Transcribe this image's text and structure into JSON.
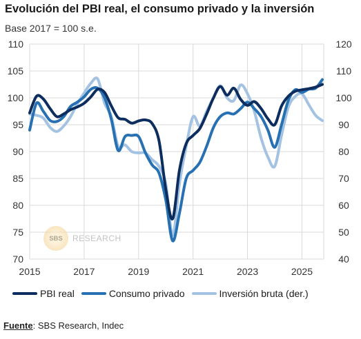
{
  "title": "Evolución del PBI real, el consumo privado y la inversión",
  "subtitle": "Base 2017 = 100 s.e.",
  "source": {
    "label": "Fuente",
    "text": ": SBS Research, Indec"
  },
  "watermark": {
    "circle": "SBS",
    "text": "RESEARCH"
  },
  "colors": {
    "pbi": "#0c2d5e",
    "consumo": "#2771b3",
    "inversion": "#a4c3e2",
    "grid": "#d9d9d9"
  },
  "chart_data": {
    "type": "line",
    "x_ticks": [
      "2015",
      "2017",
      "2019",
      "2021",
      "2023",
      "2025"
    ],
    "xlim": [
      2015,
      2025.8
    ],
    "ylim_left": [
      70,
      110
    ],
    "ylim_right": [
      40,
      120
    ],
    "y_ticks_left": [
      "70",
      "75",
      "80",
      "85",
      "90",
      "95",
      "100",
      "105",
      "110"
    ],
    "y_ticks_right": [
      "40",
      "50",
      "60",
      "70",
      "80",
      "90",
      "100",
      "110",
      "120"
    ],
    "grid": true,
    "legend_position": "bottom",
    "series": [
      {
        "name": "PBI real",
        "axis": "left",
        "color": "#0c2d5e",
        "x": [
          2015.0,
          2015.25,
          2015.5,
          2015.75,
          2016.0,
          2016.25,
          2016.5,
          2016.75,
          2017.0,
          2017.25,
          2017.5,
          2017.75,
          2018.0,
          2018.25,
          2018.5,
          2018.75,
          2019.0,
          2019.25,
          2019.5,
          2019.75,
          2020.0,
          2020.25,
          2020.5,
          2020.75,
          2021.0,
          2021.25,
          2021.5,
          2021.75,
          2022.0,
          2022.25,
          2022.5,
          2022.75,
          2023.0,
          2023.25,
          2023.5,
          2023.75,
          2024.0,
          2024.25,
          2024.5,
          2024.75,
          2025.0,
          2025.25,
          2025.5,
          2025.75
        ],
        "y": [
          97.2,
          100.3,
          99.8,
          98.0,
          96.5,
          97.0,
          97.8,
          98.3,
          99.0,
          100.2,
          101.6,
          101.0,
          98.5,
          96.3,
          96.0,
          95.3,
          95.7,
          95.9,
          95.2,
          92.0,
          83.0,
          77.5,
          86.5,
          91.5,
          93.0,
          94.3,
          97.0,
          100.0,
          102.1,
          100.5,
          101.8,
          99.7,
          98.6,
          99.3,
          98.0,
          96.1,
          95.0,
          98.5,
          100.3,
          101.2,
          101.5,
          101.7,
          102.0,
          102.5
        ]
      },
      {
        "name": "Consumo privado",
        "axis": "left",
        "color": "#2771b3",
        "x": [
          2015.0,
          2015.25,
          2015.5,
          2015.75,
          2016.0,
          2016.25,
          2016.5,
          2016.75,
          2017.0,
          2017.25,
          2017.5,
          2017.75,
          2018.0,
          2018.25,
          2018.5,
          2018.75,
          2019.0,
          2019.25,
          2019.5,
          2019.75,
          2020.0,
          2020.25,
          2020.5,
          2020.75,
          2021.0,
          2021.25,
          2021.5,
          2021.75,
          2022.0,
          2022.25,
          2022.5,
          2022.75,
          2023.0,
          2023.25,
          2023.5,
          2023.75,
          2024.0,
          2024.25,
          2024.5,
          2024.75,
          2025.0,
          2025.25,
          2025.5,
          2025.75
        ],
        "y": [
          94.0,
          99.0,
          97.5,
          95.8,
          95.6,
          96.5,
          98.4,
          99.2,
          100.2,
          101.6,
          101.8,
          100.0,
          96.0,
          90.2,
          92.8,
          93.0,
          92.8,
          89.8,
          87.5,
          86.0,
          81.0,
          73.4,
          78.5,
          85.0,
          86.5,
          88.0,
          91.0,
          94.5,
          96.5,
          97.2,
          97.0,
          98.0,
          99.2,
          98.0,
          96.5,
          94.0,
          90.8,
          95.0,
          99.5,
          101.5,
          101.0,
          101.6,
          101.8,
          103.4
        ]
      },
      {
        "name": "Inversión bruta (der.)",
        "axis": "right",
        "color": "#a4c3e2",
        "x": [
          2015.0,
          2015.25,
          2015.5,
          2015.75,
          2016.0,
          2016.25,
          2016.5,
          2016.75,
          2017.0,
          2017.25,
          2017.5,
          2017.75,
          2018.0,
          2018.25,
          2018.5,
          2018.75,
          2019.0,
          2019.25,
          2019.5,
          2019.75,
          2020.0,
          2020.25,
          2020.5,
          2020.75,
          2021.0,
          2021.25,
          2021.5,
          2021.75,
          2022.0,
          2022.25,
          2022.5,
          2022.75,
          2023.0,
          2023.25,
          2023.5,
          2023.75,
          2024.0,
          2024.25,
          2024.5,
          2024.75,
          2025.0,
          2025.25,
          2025.5,
          2025.75
        ],
        "y": [
          94.0,
          93.5,
          92.5,
          89.0,
          87.5,
          89.5,
          93.0,
          97.8,
          101.8,
          105.5,
          107.0,
          98.0,
          93.0,
          82.0,
          82.5,
          80.0,
          79.5,
          79.5,
          77.0,
          74.5,
          68.0,
          48.8,
          68.0,
          82.0,
          93.0,
          89.5,
          95.0,
          100.0,
          104.5,
          100.0,
          99.0,
          104.8,
          101.5,
          95.0,
          85.0,
          78.0,
          74.5,
          86.0,
          96.5,
          100.5,
          101.5,
          97.5,
          93.5,
          91.5
        ]
      }
    ]
  }
}
